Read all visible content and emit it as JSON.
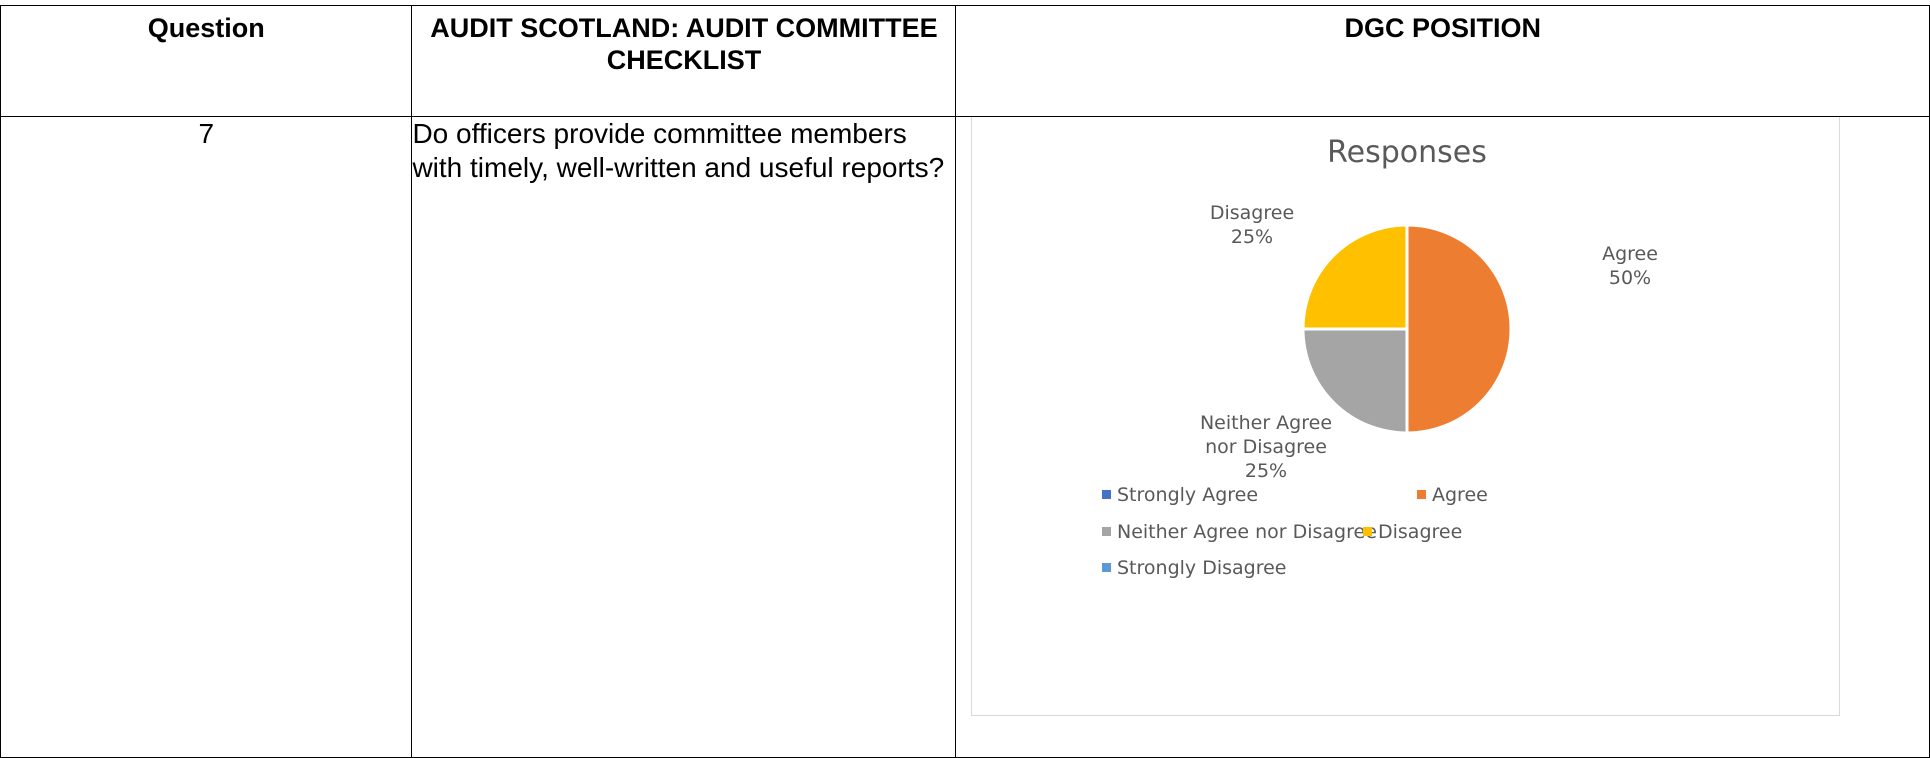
{
  "table": {
    "headers": {
      "question": "Question",
      "checklist": "AUDIT SCOTLAND: AUDIT COMMITTEE CHECKLIST",
      "dgc_position": "DGC POSITION"
    },
    "row": {
      "number": "7",
      "question_text": "Do officers provide committee members with timely, well-written and useful reports?"
    }
  },
  "chart_data": {
    "type": "pie",
    "title": "Responses",
    "categories": [
      "Strongly Agree",
      "Agree",
      "Neither Agree nor Disagree",
      "Disagree",
      "Strongly Disagree"
    ],
    "values": [
      0,
      50,
      25,
      25,
      0
    ],
    "colors": [
      "#4472C4",
      "#ED7D31",
      "#A5A5A5",
      "#FFC000",
      "#5B9BD5"
    ],
    "data_labels": {
      "Agree": [
        "Agree",
        "50%"
      ],
      "Neither Agree nor Disagree": [
        "Neither Agree",
        "nor Disagree",
        "25%"
      ],
      "Disagree": [
        "Disagree",
        "25%"
      ]
    },
    "legend_position": "bottom"
  }
}
